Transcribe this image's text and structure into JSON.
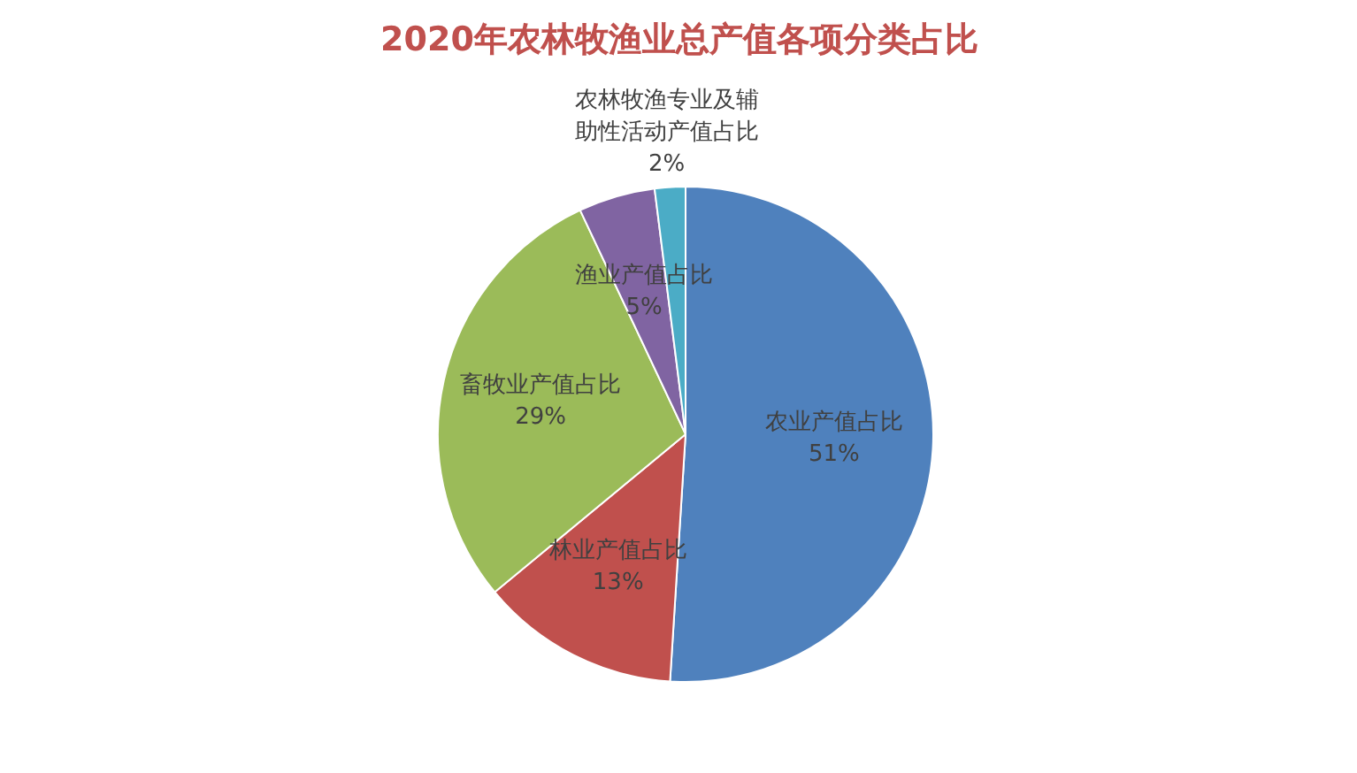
{
  "chart_data": {
    "type": "pie",
    "title": "2020年农林牧渔业总产值各项分类占比",
    "categories": [
      "农业产值占比",
      "林业产值占比",
      "畜牧业产值占比",
      "渔业产值占比",
      "农林牧渔专业及辅助性活动产值占比"
    ],
    "values": [
      51,
      13,
      29,
      5,
      2
    ],
    "colors": [
      "#4f81bd",
      "#c0504d",
      "#9bbb59",
      "#8064a2",
      "#4bacc6"
    ],
    "value_labels": [
      "51%",
      "13%",
      "29%",
      "5%",
      "2%"
    ],
    "legend": false
  }
}
